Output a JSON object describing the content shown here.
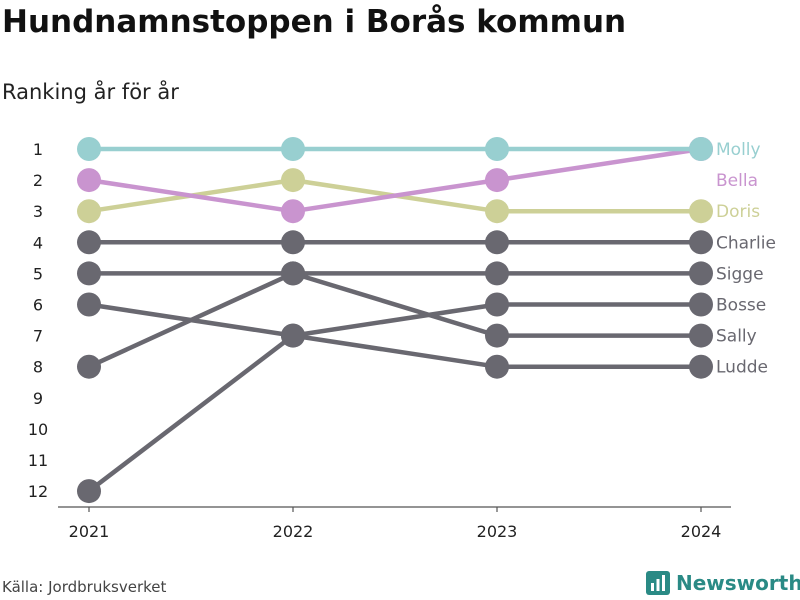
{
  "header": {
    "title": "Hundnamnstoppen i Borås kommun",
    "subtitle": "Ranking år för år"
  },
  "footer": {
    "source": "Källa: Jordbruksverket",
    "brand": "Newsworthy"
  },
  "chart_data": {
    "type": "line",
    "chart_kind": "bump",
    "title": "Hundnamnstoppen i Borås kommun",
    "subtitle": "Ranking år för år",
    "xlabel": "",
    "ylabel": "",
    "categories": [
      "2021",
      "2022",
      "2023",
      "2024"
    ],
    "y_ticks": [
      "1",
      "2",
      "3",
      "4",
      "5",
      "6",
      "7",
      "8",
      "9",
      "10",
      "11",
      "12"
    ],
    "ylim": [
      1,
      12
    ],
    "y_reversed": true,
    "grid": false,
    "legend_placement": "right, direct labels",
    "series": [
      {
        "name": "Molly",
        "values": [
          1,
          1,
          1,
          1
        ],
        "color": "#98cfd0"
      },
      {
        "name": "Bella",
        "values": [
          2,
          3,
          2,
          1
        ],
        "color": "#c994cf"
      },
      {
        "name": "Doris",
        "values": [
          3,
          2,
          3,
          3
        ],
        "color": "#cdd097"
      },
      {
        "name": "Charlie",
        "values": [
          4,
          4,
          4,
          4
        ],
        "color": "#696870"
      },
      {
        "name": "Sigge",
        "values": [
          5,
          5,
          5,
          5
        ],
        "color": "#696870"
      },
      {
        "name": "Bosse",
        "values": [
          6,
          7,
          6,
          6
        ],
        "color": "#696870"
      },
      {
        "name": "Sally",
        "values": [
          8,
          5,
          7,
          7
        ],
        "color": "#696870"
      },
      {
        "name": "Ludde",
        "values": [
          12,
          7,
          8,
          8
        ],
        "color": "#696870"
      }
    ]
  }
}
